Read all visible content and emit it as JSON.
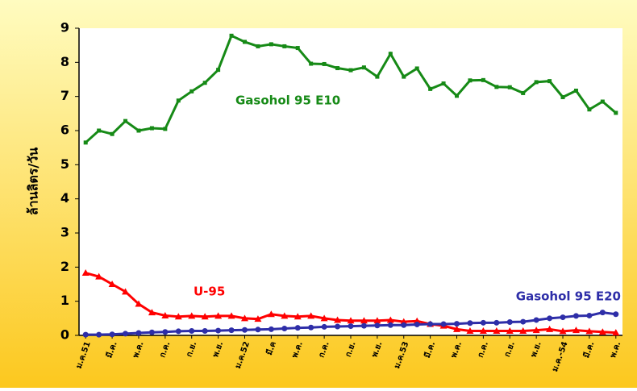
{
  "chart_data": {
    "type": "line",
    "y_label": "ล้านลิตร/วัน",
    "categories": [
      "ม.ค.51",
      null,
      "มี.ค.",
      null,
      "พ.ค.",
      null,
      "ก.ค.",
      null,
      "ก.ย.",
      null,
      "พ.ย.",
      null,
      "ม.ค.52",
      null,
      "มี.ค",
      null,
      "พ.ค.",
      null,
      "ก.ค.",
      null,
      "ก.ย.",
      null,
      "พ.ย.",
      null,
      "ม.ค.53",
      null,
      "มี.ค.",
      null,
      "พ.ค.",
      null,
      "ก.ค.",
      null,
      "ก.ย.",
      null,
      "พ.ย.",
      null,
      "ม.ค.-54",
      null,
      "มี.ค.",
      null,
      "พ.ค."
    ],
    "series": [
      {
        "name": "Gasohol 95 E10",
        "color": "#168a16",
        "marker": "square",
        "values": [
          5.65,
          6.0,
          5.9,
          6.28,
          6.0,
          6.07,
          6.05,
          6.88,
          7.15,
          7.4,
          7.78,
          8.78,
          8.6,
          8.47,
          8.53,
          8.47,
          8.42,
          7.96,
          7.95,
          7.83,
          7.77,
          7.85,
          7.58,
          8.25,
          7.58,
          7.82,
          7.22,
          7.38,
          7.02,
          7.47,
          7.48,
          7.28,
          7.27,
          7.1,
          7.42,
          7.45,
          6.98,
          7.17,
          6.62,
          6.85,
          6.52
        ]
      },
      {
        "name": "U-95",
        "color": "#ff0000",
        "marker": "triangle",
        "values": [
          1.83,
          1.72,
          1.5,
          1.28,
          0.92,
          0.67,
          0.58,
          0.55,
          0.57,
          0.55,
          0.57,
          0.57,
          0.5,
          0.48,
          0.62,
          0.57,
          0.55,
          0.57,
          0.5,
          0.45,
          0.43,
          0.43,
          0.43,
          0.45,
          0.4,
          0.42,
          0.33,
          0.28,
          0.18,
          0.13,
          0.13,
          0.13,
          0.13,
          0.13,
          0.15,
          0.18,
          0.12,
          0.15,
          0.12,
          0.1,
          0.08
        ]
      },
      {
        "name": "Gasohol 95 E20",
        "color": "#2e2ea8",
        "marker": "circle",
        "values": [
          0.02,
          0.02,
          0.03,
          0.05,
          0.07,
          0.09,
          0.1,
          0.12,
          0.13,
          0.13,
          0.14,
          0.15,
          0.16,
          0.17,
          0.18,
          0.2,
          0.22,
          0.23,
          0.25,
          0.26,
          0.27,
          0.28,
          0.29,
          0.3,
          0.3,
          0.32,
          0.33,
          0.33,
          0.34,
          0.36,
          0.37,
          0.37,
          0.39,
          0.4,
          0.45,
          0.5,
          0.53,
          0.57,
          0.58,
          0.67,
          0.62
        ]
      }
    ],
    "ylim": [
      0,
      9
    ],
    "yticks": [
      0,
      1,
      2,
      3,
      4,
      5,
      6,
      7,
      8,
      9
    ],
    "grid": false
  }
}
